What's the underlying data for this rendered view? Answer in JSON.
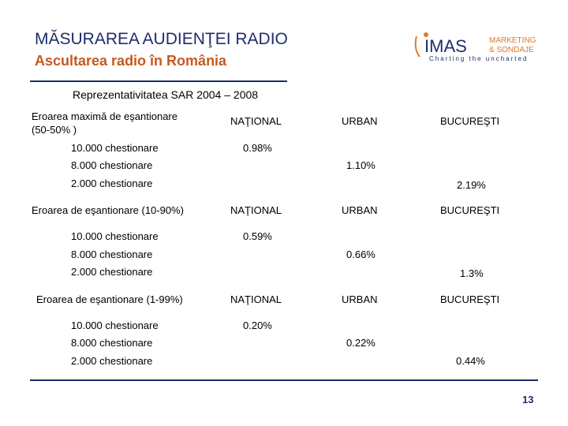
{
  "header": {
    "title": "MĂSURAREA AUDIENŢEI RADIO",
    "subtitle": "Ascultarea radio în România"
  },
  "logo": {
    "brand": "IMAS",
    "line1": "MARKETING",
    "line2": "& SONDAJE",
    "tagline": "Charting the uncharted",
    "colors": {
      "navy": "#1f2d6b",
      "orange": "#e07a2a"
    }
  },
  "section_title": "Reprezentativitatea SAR 2004 – 2008",
  "columns": [
    "NAŢIONAL",
    "URBAN",
    "BUCUREŞTI"
  ],
  "blocks": [
    {
      "label": "Eroarea maximă de eşantionare (50-50% )",
      "label_line1": "Eroarea maximă de eşantionare",
      "label_line2": "(50-50% )",
      "rows": [
        {
          "label": "10.000 chestionare",
          "value": "0.98%"
        },
        {
          "label": "8.000 chestionare",
          "value": "1.10%"
        },
        {
          "label": "2.000 chestionare",
          "value": "2.19%"
        }
      ]
    },
    {
      "label": "Eroarea de eşantionare (10-90%)",
      "rows": [
        {
          "label": "10.000 chestionare",
          "value": "0.59%"
        },
        {
          "label": "8.000 chestionare",
          "value": "0.66%"
        },
        {
          "label": "2.000 chestionare",
          "value": "1.3%"
        }
      ]
    },
    {
      "label": "Eroarea de eşantionare (1-99%)",
      "rows": [
        {
          "label": "10.000 chestionare",
          "value": "0.20%"
        },
        {
          "label": "8.000 chestionare",
          "value": "0.22%"
        },
        {
          "label": "2.000 chestionare",
          "value": "0.44%"
        }
      ]
    }
  ],
  "page_number": "13"
}
